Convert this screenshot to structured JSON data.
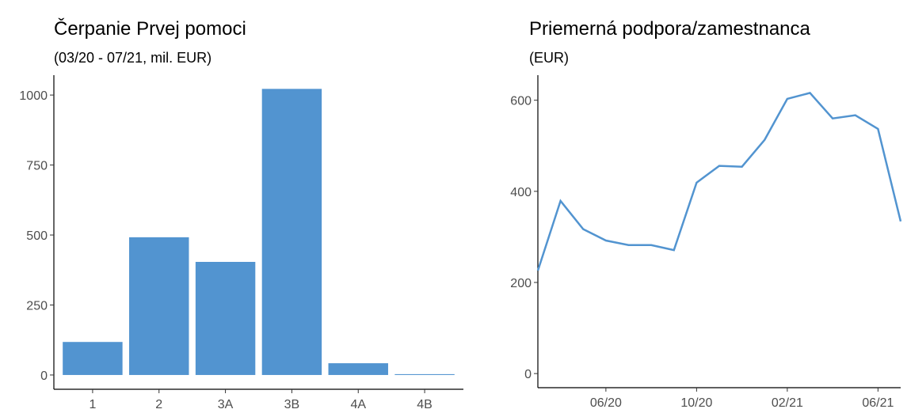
{
  "chart_data": [
    {
      "type": "bar",
      "title": "Čerpanie Prvej pomoci",
      "subtitle": "(03/20 - 07/21, mil. EUR)",
      "categories": [
        "1",
        "2",
        "3A",
        "3B",
        "4A",
        "4B"
      ],
      "values": [
        118,
        492,
        404,
        1022,
        42,
        3
      ],
      "color": "#5294d0",
      "ylim": [
        -51,
        1071
      ],
      "yticks": [
        0,
        250,
        500,
        750,
        1000
      ]
    },
    {
      "type": "line",
      "title": "Priemerná podpora/zamestnanca",
      "subtitle": "(EUR)",
      "x": [
        "03/20",
        "04/20",
        "05/20",
        "06/20",
        "07/20",
        "08/20",
        "09/20",
        "10/20",
        "11/20",
        "12/20",
        "01/21",
        "02/21",
        "03/21",
        "04/21",
        "05/21",
        "06/21",
        "07/21"
      ],
      "values": [
        226,
        379,
        317,
        292,
        282,
        282,
        271,
        419,
        456,
        454,
        513,
        603,
        616,
        560,
        567,
        537,
        334
      ],
      "color": "#5294d0",
      "xlim": [
        "03/20",
        "07/21"
      ],
      "xticks": [
        "06/20",
        "10/20",
        "02/21",
        "06/21"
      ],
      "ylim": [
        -31,
        655
      ],
      "yticks": [
        0,
        200,
        400,
        600
      ]
    }
  ]
}
